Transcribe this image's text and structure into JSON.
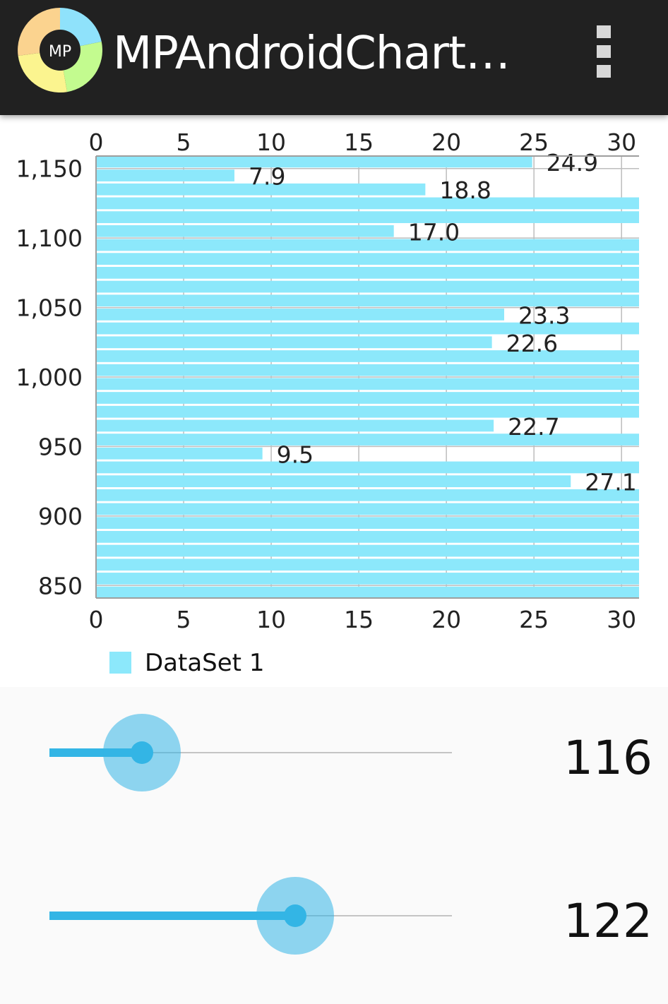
{
  "app": {
    "title": "MPAndroidChart…",
    "logo_text": "MP",
    "logo_colors": [
      "#8fe2fb",
      "#c3fb8f",
      "#fbf48f",
      "#fbd38f"
    ],
    "overflow_icon": "overflow-menu-icon"
  },
  "chart_data": {
    "type": "bar",
    "orientation": "horizontal",
    "bar_color": "#8ce8fb",
    "legend": {
      "label": "DataSet 1",
      "placement": "bottom-left"
    },
    "x_ticks": [
      "0",
      "5",
      "10",
      "15",
      "20",
      "25",
      "30"
    ],
    "y_ticks": [
      "1,150",
      "1,100",
      "1,050",
      "1,000",
      "950",
      "900",
      "850"
    ],
    "x_axis": {
      "min": 0,
      "max": 31,
      "position": "top-and-bottom"
    },
    "y_axis": {
      "min": 841,
      "max": 1159
    },
    "grid": true,
    "y": [
      1155,
      1145,
      1135,
      1125,
      1115,
      1105,
      1095,
      1085,
      1075,
      1065,
      1055,
      1045,
      1035,
      1025,
      1015,
      1005,
      995,
      985,
      975,
      965,
      955,
      945,
      935,
      925,
      915,
      905,
      895,
      885,
      875,
      865,
      855,
      845
    ],
    "values": [
      24.9,
      7.9,
      18.8,
      31,
      31,
      17.0,
      31,
      31,
      31,
      31,
      31,
      23.3,
      31,
      22.6,
      31,
      31,
      31,
      31,
      31,
      22.7,
      31,
      9.5,
      31,
      27.1,
      31,
      31,
      31,
      31,
      31,
      31,
      31,
      31
    ],
    "value_labels": [
      "24.9",
      "7.9",
      "18.8",
      "",
      "",
      "17.0",
      "",
      "",
      "",
      "",
      "",
      "23.3",
      "",
      "22.6",
      "",
      "",
      "",
      "",
      "",
      "22.7",
      "",
      "9.5",
      "",
      "27.1",
      "",
      "",
      "",
      "",
      "",
      "",
      "",
      ""
    ]
  },
  "sliders": [
    {
      "value_label": "116",
      "fraction": 0.23
    },
    {
      "value_label": "122",
      "fraction": 0.61
    }
  ]
}
